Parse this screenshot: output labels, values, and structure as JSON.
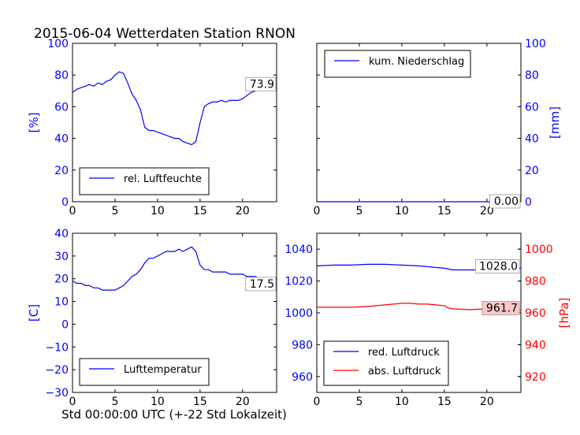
{
  "title": "2015-06-04 Wetterdaten Station RNON",
  "xlabel": "Std 00:00:00 UTC (+-22 Std Lokalzeit)",
  "colors": {
    "blue": "#0000ff",
    "red": "#ff0000",
    "axes": "#000000"
  },
  "chart_data": [
    {
      "type": "line",
      "panel": "top-left",
      "xlim": [
        0,
        24
      ],
      "xticks": [
        "0",
        "5",
        "10",
        "15",
        "20"
      ],
      "ylim": [
        0,
        100
      ],
      "yticks": [
        "0",
        "20",
        "40",
        "60",
        "80",
        "100"
      ],
      "ylabel": "[%]",
      "ylabel_side": "left",
      "legend": "lower-left",
      "last_value_label": "73.9",
      "series": [
        {
          "name": "rel. Luftfeuchte",
          "color": "#0000ff",
          "x": [
            0,
            0.5,
            1,
            1.5,
            2,
            2.5,
            3,
            3.5,
            4,
            4.5,
            5,
            5.5,
            6,
            6.5,
            7,
            7.5,
            8,
            8.5,
            9,
            9.5,
            10,
            10.5,
            11,
            11.5,
            12,
            12.5,
            13,
            13.5,
            14,
            14.5,
            15,
            15.5,
            16,
            16.5,
            17,
            17.5,
            18,
            18.5,
            19,
            19.5,
            20,
            20.5,
            21,
            21.5,
            22,
            22.5,
            23,
            23.5,
            24
          ],
          "y": [
            69,
            71,
            72,
            73,
            74,
            73,
            75,
            74,
            76,
            77,
            80,
            82,
            81,
            75,
            68,
            64,
            58,
            47,
            45,
            45,
            44,
            43,
            42,
            41,
            40,
            40,
            38,
            37,
            36,
            38,
            50,
            60,
            62,
            63,
            63,
            64,
            63,
            64,
            64,
            64,
            65,
            67,
            69,
            70,
            71,
            72,
            73,
            74,
            74
          ]
        }
      ]
    },
    {
      "type": "line",
      "panel": "top-right",
      "xlim": [
        0,
        24
      ],
      "xticks": [
        "0",
        "5",
        "10",
        "15",
        "20"
      ],
      "ylim": [
        0,
        100
      ],
      "yticks": [
        "0",
        "20",
        "40",
        "60",
        "80",
        "100"
      ],
      "ylabel": "[mm]",
      "ylabel_side": "right",
      "legend": "upper-left",
      "last_value_label": "0.00",
      "series": [
        {
          "name": "kum. Niederschlag",
          "color": "#0000ff",
          "x": [
            0,
            24
          ],
          "y": [
            0,
            0
          ]
        }
      ]
    },
    {
      "type": "line",
      "panel": "bottom-left",
      "xlim": [
        0,
        24
      ],
      "xticks": [
        "0",
        "5",
        "10",
        "15",
        "20"
      ],
      "ylim": [
        -30,
        40
      ],
      "yticks": [
        "−30",
        "−20",
        "−10",
        "0",
        "10",
        "20",
        "30",
        "40"
      ],
      "ylabel": "[C]",
      "ylabel_side": "left",
      "legend": "lower-left",
      "last_value_label": "17.5",
      "series": [
        {
          "name": "Lufttemperatur",
          "color": "#0000ff",
          "x": [
            0,
            0.5,
            1,
            1.5,
            2,
            2.5,
            3,
            3.5,
            4,
            4.5,
            5,
            5.5,
            6,
            6.5,
            7,
            7.5,
            8,
            8.5,
            9,
            9.5,
            10,
            10.5,
            11,
            11.5,
            12,
            12.5,
            13,
            13.5,
            14,
            14.5,
            15,
            15.5,
            16,
            16.5,
            17,
            17.5,
            18,
            18.5,
            19,
            19.5,
            20,
            20.5,
            21,
            21.5,
            22,
            22.5,
            23,
            23.5,
            24
          ],
          "y": [
            19,
            18,
            18,
            17,
            17,
            16,
            16,
            15,
            15,
            15,
            15,
            16,
            17,
            19,
            21,
            22,
            24,
            27,
            29,
            29,
            30,
            31,
            32,
            32,
            32,
            33,
            32,
            33,
            34,
            32,
            26,
            24,
            24,
            23,
            23,
            23,
            23,
            22,
            22,
            22,
            22,
            21,
            21,
            21,
            20,
            20,
            19,
            18,
            17.5
          ]
        }
      ]
    },
    {
      "type": "line",
      "panel": "bottom-right",
      "xlim": [
        0,
        24
      ],
      "xticks": [
        "0",
        "5",
        "10",
        "15",
        "20"
      ],
      "ylim_left": [
        950,
        1050
      ],
      "yticks_left": [
        "960",
        "980",
        "1000",
        "1020",
        "1040"
      ],
      "ylim_right": [
        910,
        1010
      ],
      "yticks_right": [
        "920",
        "940",
        "960",
        "980",
        "1000"
      ],
      "ylabel_right": "[hPa]",
      "legend": "lower-left",
      "series": [
        {
          "name": "red. Luftdruck",
          "color": "#0000ff",
          "axis": "left",
          "last_value_label": "1028.0",
          "x": [
            0,
            2,
            4,
            6,
            8,
            10,
            12,
            14,
            15,
            16,
            18,
            20,
            22,
            24
          ],
          "y": [
            1029.5,
            1030,
            1030,
            1030.5,
            1030.5,
            1030,
            1029.5,
            1028.5,
            1028,
            1027,
            1027,
            1027,
            1028,
            1028
          ]
        },
        {
          "name": "abs. Luftdruck",
          "color": "#ff0000",
          "axis": "right",
          "last_value_label": "961.7",
          "x": [
            0,
            2,
            4,
            6,
            8,
            9,
            10,
            11,
            12,
            13,
            14,
            15,
            15.5,
            16,
            18,
            20,
            22,
            24
          ],
          "y": [
            963.5,
            963.5,
            963.5,
            964,
            965,
            965.5,
            966,
            966,
            965.5,
            965.5,
            965,
            964.5,
            963,
            962.5,
            962,
            962.5,
            963,
            961.7
          ]
        }
      ]
    }
  ]
}
